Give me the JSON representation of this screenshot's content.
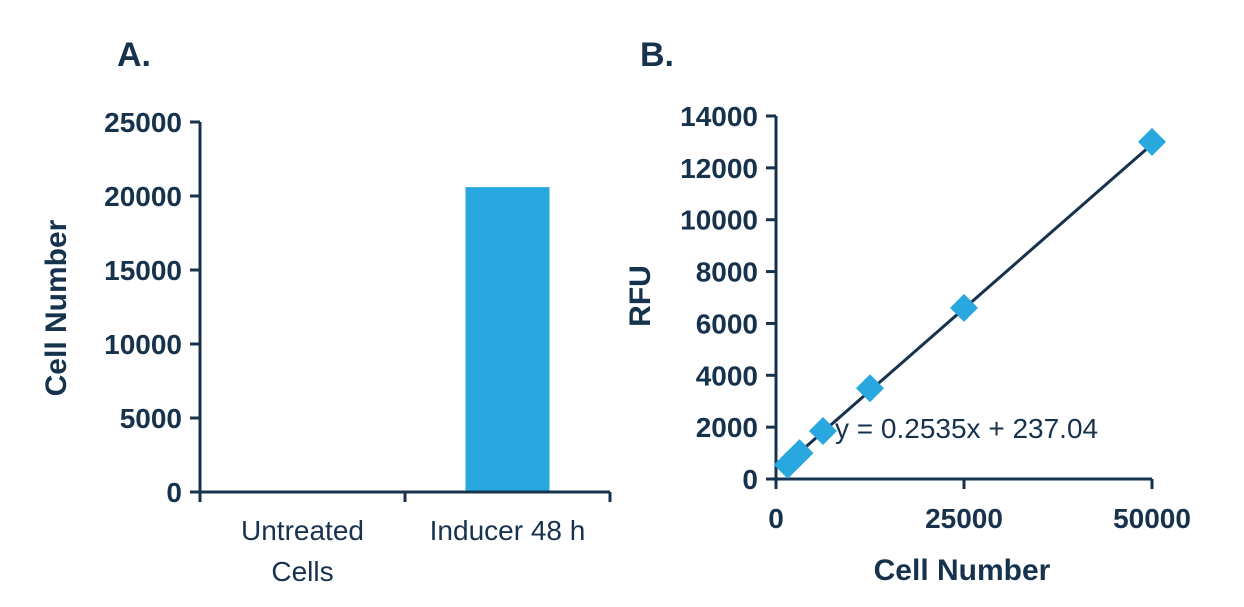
{
  "colors": {
    "axis": "#17324d",
    "bar": "#29a8e0",
    "marker": "#29a8e0",
    "fit": "#17324d",
    "text": "#17324d"
  },
  "chart_data": [
    {
      "panel": "A.",
      "type": "bar",
      "categories": [
        [
          "Untreated",
          "Cells"
        ],
        [
          "Inducer 48 h"
        ]
      ],
      "values": [
        0,
        20600
      ],
      "ylabel": "Cell Number",
      "xlabel": "",
      "ylim": [
        0,
        25000
      ],
      "yticks": [
        0,
        5000,
        10000,
        15000,
        20000,
        25000
      ],
      "grid": false,
      "legend": "none"
    },
    {
      "panel": "B.",
      "type": "scatter",
      "x": [
        1563,
        3125,
        6250,
        12500,
        25000,
        50000
      ],
      "y": [
        550,
        1000,
        1850,
        3500,
        6600,
        13000
      ],
      "fit": {
        "slope": 0.2535,
        "intercept": 237.04,
        "x_range": [
          1563,
          50000
        ]
      },
      "equation": "y = 0.2535x + 237.04",
      "xlabel": "Cell Number",
      "ylabel": "RFU",
      "xlim": [
        0,
        50000
      ],
      "ylim": [
        0,
        14000
      ],
      "xticks": [
        0,
        25000,
        50000
      ],
      "yticks": [
        0,
        2000,
        4000,
        6000,
        8000,
        10000,
        12000,
        14000
      ],
      "marker": "diamond",
      "grid": false,
      "legend": "none"
    }
  ]
}
